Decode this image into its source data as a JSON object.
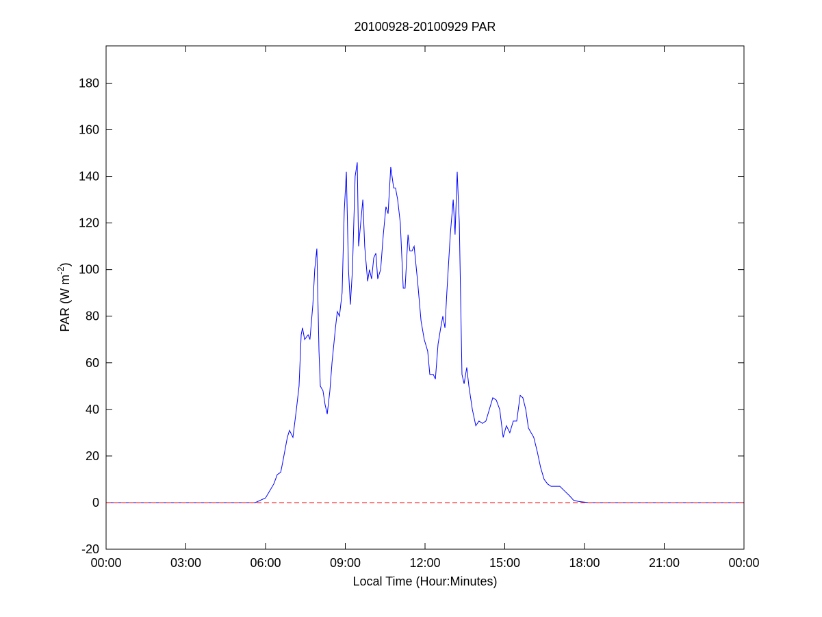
{
  "chart_data": {
    "type": "line",
    "title": "20100928-20100929 PAR",
    "xlabel": "Local Time (Hour:Minutes)",
    "ylabel": {
      "text": "PAR (W m",
      "superscript": "-2",
      "suffix": ")"
    },
    "x": [
      0,
      5.61,
      6.0,
      6.31,
      6.44,
      6.57,
      6.64,
      6.82,
      6.9,
      7.03,
      7.16,
      7.26,
      7.34,
      7.39,
      7.47,
      7.6,
      7.67,
      7.78,
      7.85,
      7.93,
      8.01,
      8.06,
      8.16,
      8.24,
      8.32,
      8.42,
      8.5,
      8.63,
      8.7,
      8.78,
      8.88,
      8.96,
      9.04,
      9.12,
      9.19,
      9.27,
      9.37,
      9.45,
      9.5,
      9.58,
      9.66,
      9.73,
      9.84,
      9.91,
      9.99,
      10.07,
      10.15,
      10.22,
      10.33,
      10.43,
      10.53,
      10.61,
      10.71,
      10.82,
      10.89,
      10.97,
      11.07,
      11.18,
      11.25,
      11.36,
      11.43,
      11.51,
      11.59,
      11.72,
      11.85,
      11.97,
      12.1,
      12.18,
      12.31,
      12.39,
      12.49,
      12.59,
      12.67,
      12.75,
      12.82,
      12.95,
      13.06,
      13.13,
      13.21,
      13.29,
      13.39,
      13.47,
      13.57,
      13.65,
      13.78,
      13.91,
      14.03,
      14.16,
      14.29,
      14.42,
      14.55,
      14.68,
      14.81,
      14.94,
      15.06,
      15.19,
      15.32,
      15.45,
      15.58,
      15.68,
      15.79,
      15.89,
      15.99,
      16.09,
      16.22,
      16.35,
      16.48,
      16.61,
      16.74,
      16.87,
      17.07,
      17.25,
      17.43,
      17.59,
      17.77,
      18.15,
      24
    ],
    "values": [
      0,
      0,
      2,
      8,
      12,
      13,
      17,
      28,
      31,
      28,
      40,
      50,
      72,
      75,
      70,
      72,
      70,
      85,
      100,
      109,
      65,
      50,
      48,
      42,
      38,
      48,
      60,
      75,
      82,
      80,
      90,
      125,
      142,
      100,
      85,
      100,
      140,
      146,
      110,
      120,
      130,
      110,
      95,
      100,
      96,
      105,
      107,
      96,
      100,
      115,
      127,
      124,
      144,
      135,
      135,
      130,
      120,
      92,
      92,
      115,
      108,
      108,
      110,
      95,
      78,
      70,
      65,
      55,
      55,
      53,
      68,
      75,
      80,
      75,
      90,
      115,
      130,
      115,
      142,
      120,
      55,
      51,
      58,
      50,
      40,
      33,
      35,
      34,
      35,
      40,
      45,
      44,
      40,
      28,
      33,
      30,
      35,
      35,
      46,
      45,
      40,
      32,
      30,
      28,
      22,
      15,
      10,
      8,
      7,
      7,
      7,
      5,
      3,
      1,
      0.5,
      0,
      0
    ],
    "color": "#0000ff",
    "reference_line": {
      "value": 0,
      "color": "#ff0000",
      "style": "dashed"
    },
    "xlim": [
      0,
      24
    ],
    "xticks": [
      {
        "value": 0,
        "label": "00:00"
      },
      {
        "value": 3,
        "label": "03:00"
      },
      {
        "value": 6,
        "label": "06:00"
      },
      {
        "value": 9,
        "label": "09:00"
      },
      {
        "value": 12,
        "label": "12:00"
      },
      {
        "value": 15,
        "label": "15:00"
      },
      {
        "value": 18,
        "label": "18:00"
      },
      {
        "value": 21,
        "label": "21:00"
      },
      {
        "value": 24,
        "label": "00:00"
      }
    ],
    "ylim": [
      -20,
      196
    ],
    "yticks": [
      -20,
      0,
      20,
      40,
      60,
      80,
      100,
      120,
      140,
      160,
      180
    ],
    "grid": false
  }
}
